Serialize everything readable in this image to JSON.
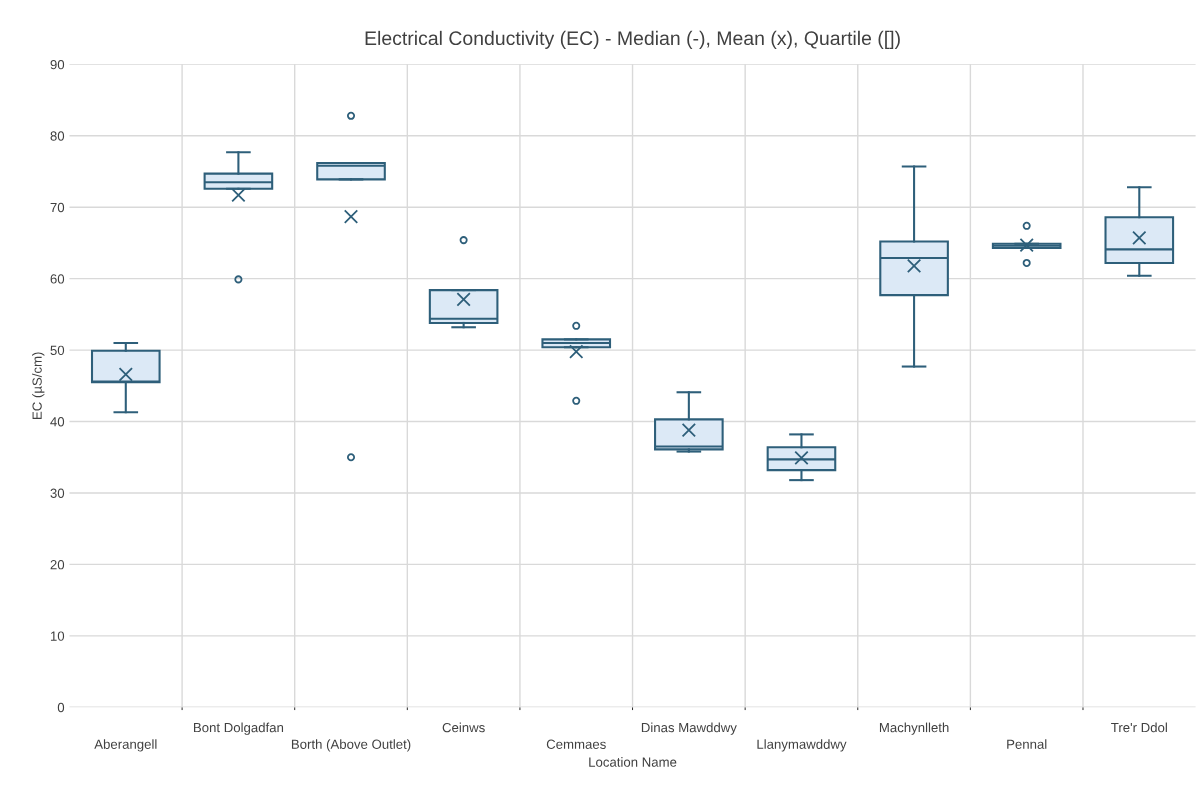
{
  "chart_data": {
    "type": "box",
    "title": "Electrical Conductivity (EC) - Median (-), Mean (x), Quartile ([])",
    "xlabel": "Location Name",
    "ylabel": "EC (µS/cm)",
    "categories": [
      "Aberangell",
      "Bont Dolgadfan",
      "Borth (Above Outlet)",
      "Ceinws",
      "Cemmaes",
      "Dinas Mawddwy",
      "Llanymawddwy",
      "Machynlleth",
      "Pennal",
      "Tre'r Ddol"
    ],
    "series": [
      {
        "color": "#2e5f7a",
        "boxes": [
          {
            "low": 41.3,
            "q1": 45.5,
            "median": 45.6,
            "q3": 49.9,
            "high": 51.0,
            "mean": 46.6
          },
          {
            "low": 72.6,
            "q1": 72.6,
            "median": 73.5,
            "q3": 74.7,
            "high": 77.7,
            "mean": 71.7,
            "outliers": [
              59.9
            ]
          },
          {
            "low": 73.9,
            "q1": 73.9,
            "median": 75.8,
            "q3": 76.2,
            "high": 76.2,
            "mean": 68.7,
            "outliers": [
              82.8,
              35.0
            ]
          },
          {
            "low": 53.2,
            "q1": 53.8,
            "median": 54.4,
            "q3": 58.4,
            "high": 58.4,
            "mean": 57.1,
            "outliers": [
              65.4
            ]
          },
          {
            "low": 50.4,
            "q1": 50.4,
            "median": 51.0,
            "q3": 51.5,
            "high": 51.5,
            "mean": 49.8,
            "outliers": [
              53.4,
              42.9
            ]
          },
          {
            "low": 35.8,
            "q1": 36.1,
            "median": 36.5,
            "q3": 40.3,
            "high": 44.1,
            "mean": 38.8
          },
          {
            "low": 31.8,
            "q1": 33.2,
            "median": 34.7,
            "q3": 36.4,
            "high": 38.2,
            "mean": 34.9
          },
          {
            "low": 47.7,
            "q1": 57.7,
            "median": 62.9,
            "q3": 65.2,
            "high": 75.7,
            "mean": 61.8
          },
          {
            "low": 64.3,
            "q1": 64.3,
            "median": 64.6,
            "q3": 64.9,
            "high": 64.9,
            "mean": 64.7,
            "outliers": [
              67.4,
              62.2
            ]
          },
          {
            "low": 60.4,
            "q1": 62.2,
            "median": 64.1,
            "q3": 68.6,
            "high": 72.8,
            "mean": 65.7
          }
        ]
      }
    ],
    "ylim": [
      0,
      90
    ],
    "yticks": [
      0,
      10,
      20,
      30,
      40,
      50,
      60,
      70,
      80,
      90
    ],
    "grid": true
  }
}
